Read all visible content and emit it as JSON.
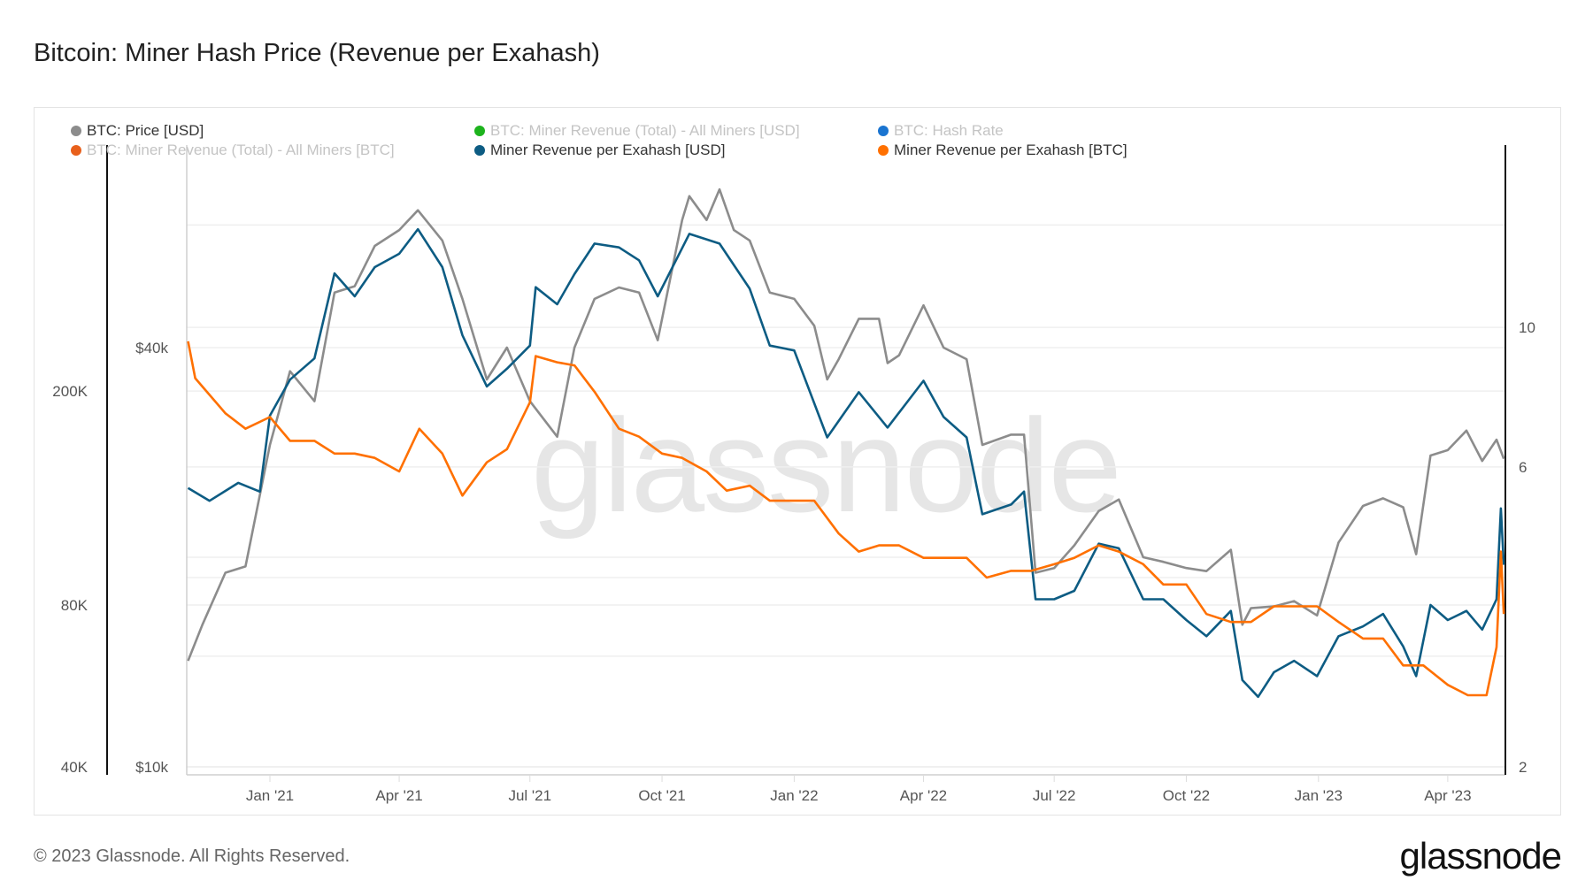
{
  "title": "Bitcoin: Miner Hash Price (Revenue per Exahash)",
  "footer": "© 2023 Glassnode. All Rights Reserved.",
  "logo_text": "glassnode",
  "watermark": "glassnode",
  "chart_data": {
    "type": "line",
    "title": "Bitcoin: Miner Hash Price (Revenue per Exahash)",
    "legend_placement": "top",
    "grid": true,
    "legend": [
      {
        "name": "BTC: Price [USD]",
        "color": "#8c8c8c",
        "active": true
      },
      {
        "name": "BTC: Miner Revenue (Total) - All Miners [USD]",
        "color": "#1db31d",
        "active": false
      },
      {
        "name": "BTC: Hash Rate",
        "color": "#1a74d0",
        "active": false
      },
      {
        "name": "BTC: Miner Revenue (Total) - All Miners [BTC]",
        "color": "#e8601c",
        "active": false
      },
      {
        "name": "Miner Revenue per Exahash [USD]",
        "color": "#0d5c83",
        "active": true
      },
      {
        "name": "Miner Revenue per Exahash [BTC]",
        "color": "#ff7000",
        "active": true
      }
    ],
    "x_ticks": [
      "Jan '21",
      "Apr '21",
      "Jul '21",
      "Oct '21",
      "Jan '22",
      "Apr '22",
      "Jul '22",
      "Oct '22",
      "Jan '23",
      "Apr '23"
    ],
    "x_tick_dates": [
      "2021-01-01",
      "2021-04-01",
      "2021-07-01",
      "2021-10-01",
      "2022-01-01",
      "2022-04-01",
      "2022-07-01",
      "2022-10-01",
      "2023-01-01",
      "2023-04-01"
    ],
    "x_range": [
      "2020-11-05",
      "2023-05-10"
    ],
    "axes": {
      "left_outer": {
        "scale": "log",
        "ticks": [
          "40K",
          "80K",
          "200K"
        ],
        "tick_values": [
          40000,
          80000,
          200000
        ],
        "series": "Miner Revenue per Exahash [USD]"
      },
      "left_inner": {
        "scale": "log",
        "ticks": [
          "$10k",
          "$40k"
        ],
        "tick_values": [
          10000,
          40000
        ],
        "series": "BTC: Price [USD]"
      },
      "right": {
        "scale": "log",
        "ticks": [
          "2",
          "6",
          "10"
        ],
        "tick_values": [
          2,
          6,
          10
        ],
        "series": "Miner Revenue per Exahash [BTC]"
      }
    },
    "series": [
      {
        "name": "BTC: Price [USD]",
        "color": "#8c8c8c",
        "points": [
          [
            "2020-11-05",
            14200
          ],
          [
            "2020-11-15",
            16000
          ],
          [
            "2020-12-01",
            19000
          ],
          [
            "2020-12-15",
            19400
          ],
          [
            "2021-01-01",
            29000
          ],
          [
            "2021-01-15",
            37000
          ],
          [
            "2021-02-01",
            33500
          ],
          [
            "2021-02-15",
            48000
          ],
          [
            "2021-03-01",
            49000
          ],
          [
            "2021-03-15",
            56000
          ],
          [
            "2021-04-01",
            59000
          ],
          [
            "2021-04-14",
            63000
          ],
          [
            "2021-05-01",
            57000
          ],
          [
            "2021-05-15",
            47000
          ],
          [
            "2021-06-01",
            36000
          ],
          [
            "2021-06-15",
            40000
          ],
          [
            "2021-07-01",
            33500
          ],
          [
            "2021-07-20",
            29800
          ],
          [
            "2021-08-01",
            40000
          ],
          [
            "2021-08-15",
            47000
          ],
          [
            "2021-09-01",
            48800
          ],
          [
            "2021-09-15",
            48000
          ],
          [
            "2021-09-28",
            41000
          ],
          [
            "2021-10-15",
            61000
          ],
          [
            "2021-10-20",
            66000
          ],
          [
            "2021-11-01",
            61000
          ],
          [
            "2021-11-10",
            67500
          ],
          [
            "2021-11-20",
            59000
          ],
          [
            "2021-12-01",
            57000
          ],
          [
            "2021-12-15",
            48000
          ],
          [
            "2022-01-01",
            47000
          ],
          [
            "2022-01-15",
            43000
          ],
          [
            "2022-01-24",
            36000
          ],
          [
            "2022-02-01",
            38500
          ],
          [
            "2022-02-15",
            44000
          ],
          [
            "2022-03-01",
            44000
          ],
          [
            "2022-03-07",
            38000
          ],
          [
            "2022-03-15",
            39000
          ],
          [
            "2022-04-01",
            46000
          ],
          [
            "2022-04-15",
            40000
          ],
          [
            "2022-05-01",
            38500
          ],
          [
            "2022-05-12",
            29000
          ],
          [
            "2022-06-01",
            30000
          ],
          [
            "2022-06-10",
            30000
          ],
          [
            "2022-06-18",
            19000
          ],
          [
            "2022-07-01",
            19300
          ],
          [
            "2022-07-15",
            20800
          ],
          [
            "2022-08-01",
            23300
          ],
          [
            "2022-08-15",
            24200
          ],
          [
            "2022-09-01",
            20000
          ],
          [
            "2022-09-15",
            19700
          ],
          [
            "2022-10-01",
            19300
          ],
          [
            "2022-10-15",
            19100
          ],
          [
            "2022-11-01",
            20500
          ],
          [
            "2022-11-09",
            16000
          ],
          [
            "2022-11-15",
            16900
          ],
          [
            "2022-12-01",
            17000
          ],
          [
            "2022-12-15",
            17300
          ],
          [
            "2022-12-31",
            16500
          ],
          [
            "2023-01-15",
            21000
          ],
          [
            "2023-02-01",
            23700
          ],
          [
            "2023-02-15",
            24300
          ],
          [
            "2023-03-01",
            23600
          ],
          [
            "2023-03-10",
            20200
          ],
          [
            "2023-03-20",
            28000
          ],
          [
            "2023-04-01",
            28500
          ],
          [
            "2023-04-14",
            30400
          ],
          [
            "2023-04-25",
            27500
          ],
          [
            "2023-05-05",
            29500
          ],
          [
            "2023-05-10",
            27700
          ]
        ]
      },
      {
        "name": "Miner Revenue per Exahash [USD]",
        "color": "#0d5c83",
        "points": [
          [
            "2020-11-05",
            132000
          ],
          [
            "2020-11-20",
            125000
          ],
          [
            "2020-12-10",
            135000
          ],
          [
            "2020-12-25",
            130000
          ],
          [
            "2021-01-01",
            180000
          ],
          [
            "2021-01-15",
            210000
          ],
          [
            "2021-02-01",
            230000
          ],
          [
            "2021-02-15",
            331000
          ],
          [
            "2021-03-01",
            300000
          ],
          [
            "2021-03-15",
            340000
          ],
          [
            "2021-04-01",
            360000
          ],
          [
            "2021-04-14",
            400000
          ],
          [
            "2021-05-01",
            340000
          ],
          [
            "2021-05-15",
            254000
          ],
          [
            "2021-06-01",
            204000
          ],
          [
            "2021-06-15",
            220000
          ],
          [
            "2021-07-01",
            243000
          ],
          [
            "2021-07-05",
            312000
          ],
          [
            "2021-07-20",
            290000
          ],
          [
            "2021-08-01",
            330000
          ],
          [
            "2021-08-15",
            376000
          ],
          [
            "2021-09-01",
            370000
          ],
          [
            "2021-09-15",
            350000
          ],
          [
            "2021-09-28",
            300000
          ],
          [
            "2021-10-20",
            392000
          ],
          [
            "2021-11-10",
            376000
          ],
          [
            "2021-12-01",
            310000
          ],
          [
            "2021-12-15",
            243000
          ],
          [
            "2022-01-01",
            238000
          ],
          [
            "2022-01-24",
            164000
          ],
          [
            "2022-02-15",
            199000
          ],
          [
            "2022-03-07",
            171000
          ],
          [
            "2022-04-01",
            209000
          ],
          [
            "2022-04-15",
            179000
          ],
          [
            "2022-05-01",
            164000
          ],
          [
            "2022-05-12",
            118000
          ],
          [
            "2022-06-01",
            123000
          ],
          [
            "2022-06-10",
            130000
          ],
          [
            "2022-06-18",
            82000
          ],
          [
            "2022-07-01",
            82000
          ],
          [
            "2022-07-15",
            85000
          ],
          [
            "2022-08-01",
            104000
          ],
          [
            "2022-08-15",
            102000
          ],
          [
            "2022-09-01",
            82000
          ],
          [
            "2022-09-15",
            82000
          ],
          [
            "2022-10-01",
            75000
          ],
          [
            "2022-10-15",
            70000
          ],
          [
            "2022-11-01",
            78000
          ],
          [
            "2022-11-09",
            58000
          ],
          [
            "2022-11-20",
            54000
          ],
          [
            "2022-12-01",
            60000
          ],
          [
            "2022-12-15",
            63000
          ],
          [
            "2022-12-31",
            59000
          ],
          [
            "2023-01-15",
            70000
          ],
          [
            "2023-02-01",
            73000
          ],
          [
            "2023-02-15",
            77000
          ],
          [
            "2023-03-01",
            67000
          ],
          [
            "2023-03-10",
            59000
          ],
          [
            "2023-03-20",
            80000
          ],
          [
            "2023-04-01",
            75000
          ],
          [
            "2023-04-14",
            78000
          ],
          [
            "2023-04-25",
            72000
          ],
          [
            "2023-05-05",
            82000
          ],
          [
            "2023-05-08",
            121000
          ],
          [
            "2023-05-10",
            95000
          ]
        ]
      },
      {
        "name": "Miner Revenue per Exahash [BTC]",
        "color": "#ff7000",
        "points": [
          [
            "2020-11-05",
            9.5
          ],
          [
            "2020-11-10",
            8.3
          ],
          [
            "2020-12-01",
            7.3
          ],
          [
            "2020-12-15",
            6.9
          ],
          [
            "2021-01-01",
            7.2
          ],
          [
            "2021-01-15",
            6.6
          ],
          [
            "2021-02-01",
            6.6
          ],
          [
            "2021-02-15",
            6.3
          ],
          [
            "2021-03-01",
            6.3
          ],
          [
            "2021-03-15",
            6.2
          ],
          [
            "2021-04-01",
            5.9
          ],
          [
            "2021-04-15",
            6.9
          ],
          [
            "2021-05-01",
            6.3
          ],
          [
            "2021-05-15",
            5.4
          ],
          [
            "2021-06-01",
            6.1
          ],
          [
            "2021-06-15",
            6.4
          ],
          [
            "2021-07-01",
            7.6
          ],
          [
            "2021-07-05",
            9.0
          ],
          [
            "2021-07-20",
            8.8
          ],
          [
            "2021-08-01",
            8.7
          ],
          [
            "2021-08-15",
            7.9
          ],
          [
            "2021-09-01",
            6.9
          ],
          [
            "2021-09-15",
            6.7
          ],
          [
            "2021-10-01",
            6.3
          ],
          [
            "2021-10-15",
            6.2
          ],
          [
            "2021-11-01",
            5.9
          ],
          [
            "2021-11-15",
            5.5
          ],
          [
            "2021-12-01",
            5.6
          ],
          [
            "2021-12-15",
            5.3
          ],
          [
            "2022-01-01",
            5.3
          ],
          [
            "2022-01-15",
            5.3
          ],
          [
            "2022-02-01",
            4.7
          ],
          [
            "2022-02-15",
            4.4
          ],
          [
            "2022-03-01",
            4.5
          ],
          [
            "2022-03-15",
            4.5
          ],
          [
            "2022-04-01",
            4.3
          ],
          [
            "2022-04-15",
            4.3
          ],
          [
            "2022-05-01",
            4.3
          ],
          [
            "2022-05-15",
            4.0
          ],
          [
            "2022-06-01",
            4.1
          ],
          [
            "2022-06-15",
            4.1
          ],
          [
            "2022-07-01",
            4.2
          ],
          [
            "2022-07-15",
            4.3
          ],
          [
            "2022-08-01",
            4.5
          ],
          [
            "2022-08-15",
            4.4
          ],
          [
            "2022-09-01",
            4.2
          ],
          [
            "2022-09-15",
            3.9
          ],
          [
            "2022-10-01",
            3.9
          ],
          [
            "2022-10-15",
            3.5
          ],
          [
            "2022-11-01",
            3.4
          ],
          [
            "2022-11-15",
            3.4
          ],
          [
            "2022-12-01",
            3.6
          ],
          [
            "2022-12-15",
            3.6
          ],
          [
            "2022-12-31",
            3.6
          ],
          [
            "2023-01-15",
            3.4
          ],
          [
            "2023-02-01",
            3.2
          ],
          [
            "2023-02-15",
            3.2
          ],
          [
            "2023-03-01",
            2.9
          ],
          [
            "2023-03-15",
            2.9
          ],
          [
            "2023-04-01",
            2.7
          ],
          [
            "2023-04-15",
            2.6
          ],
          [
            "2023-04-28",
            2.6
          ],
          [
            "2023-05-05",
            3.1
          ],
          [
            "2023-05-08",
            4.4
          ],
          [
            "2023-05-10",
            3.5
          ]
        ]
      }
    ]
  }
}
